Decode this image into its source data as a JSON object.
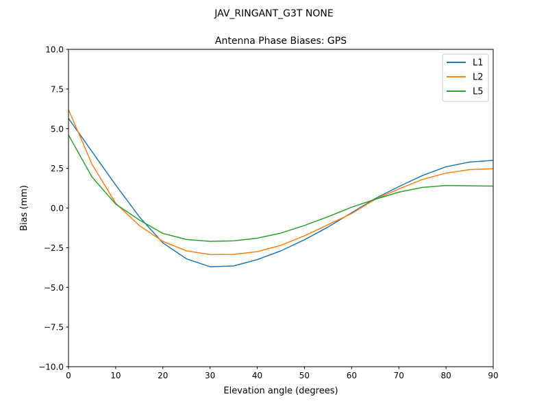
{
  "figure": {
    "suptitle": "JAV_RINGANT_G3T NONE"
  },
  "chart_data": {
    "type": "line",
    "title": "Antenna Phase Biases: GPS",
    "xlabel": "Elevation angle (degrees)",
    "ylabel": "Bias (mm)",
    "xlim": [
      0,
      90
    ],
    "ylim": [
      -10,
      10
    ],
    "xticks": [
      0,
      10,
      20,
      30,
      40,
      50,
      60,
      70,
      80,
      90
    ],
    "xtick_labels": [
      "0",
      "10",
      "20",
      "30",
      "40",
      "50",
      "60",
      "70",
      "80",
      "90"
    ],
    "yticks": [
      -10,
      -7.5,
      -5,
      -2.5,
      0,
      2.5,
      5,
      7.5,
      10
    ],
    "ytick_labels": [
      "−10.0",
      "−7.5",
      "−5.0",
      "−2.5",
      "0.0",
      "2.5",
      "5.0",
      "7.5",
      "10.0"
    ],
    "grid": false,
    "legend": "top-right",
    "x": [
      0,
      5,
      10,
      15,
      20,
      25,
      30,
      35,
      40,
      45,
      50,
      55,
      60,
      65,
      70,
      75,
      80,
      85,
      90
    ],
    "series": [
      {
        "name": "L1",
        "color": "#1f77b4",
        "values": [
          5.65,
          3.55,
          1.45,
          -0.55,
          -2.2,
          -3.2,
          -3.7,
          -3.65,
          -3.25,
          -2.7,
          -2.0,
          -1.2,
          -0.3,
          0.6,
          1.35,
          2.05,
          2.6,
          2.9,
          3.0
        ]
      },
      {
        "name": "L2",
        "color": "#ff7f0e",
        "values": [
          6.2,
          2.75,
          0.3,
          -1.1,
          -2.1,
          -2.7,
          -2.93,
          -2.92,
          -2.75,
          -2.35,
          -1.75,
          -1.05,
          -0.35,
          0.55,
          1.2,
          1.8,
          2.2,
          2.42,
          2.48
        ]
      },
      {
        "name": "L5",
        "color": "#2ca02c",
        "values": [
          4.6,
          1.95,
          0.25,
          -0.75,
          -1.6,
          -1.98,
          -2.1,
          -2.07,
          -1.9,
          -1.58,
          -1.1,
          -0.55,
          0.05,
          0.55,
          1.0,
          1.3,
          1.42,
          1.4,
          1.38
        ]
      }
    ]
  }
}
